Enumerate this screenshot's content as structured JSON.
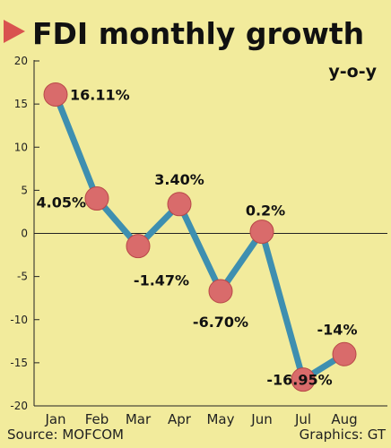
{
  "chart_data": {
    "type": "line",
    "title": "FDI monthly growth",
    "unit_label": "y-o-y",
    "categories": [
      "Jan",
      "Feb",
      "Mar",
      "Apr",
      "May",
      "Jun",
      "Jul",
      "Aug"
    ],
    "values": [
      16.11,
      4.05,
      -1.47,
      3.4,
      -6.7,
      0.2,
      -16.95,
      -14
    ],
    "data_labels": [
      "16.11%",
      "4.05%",
      "-1.47%",
      "3.40%",
      "-6.70%",
      "0.2%",
      "-16.95%",
      "-14%"
    ],
    "yticks": [
      20,
      15,
      10,
      5,
      0,
      -5,
      -10,
      -15,
      -20
    ],
    "ylim": [
      -20,
      20
    ],
    "grid": false,
    "line_color": "#3e8fb0",
    "marker_color": "#d96b6b",
    "accent_color": "#d9534f"
  },
  "footer": {
    "source": "Source: MOFCOM",
    "credit": "Graphics: GT"
  }
}
